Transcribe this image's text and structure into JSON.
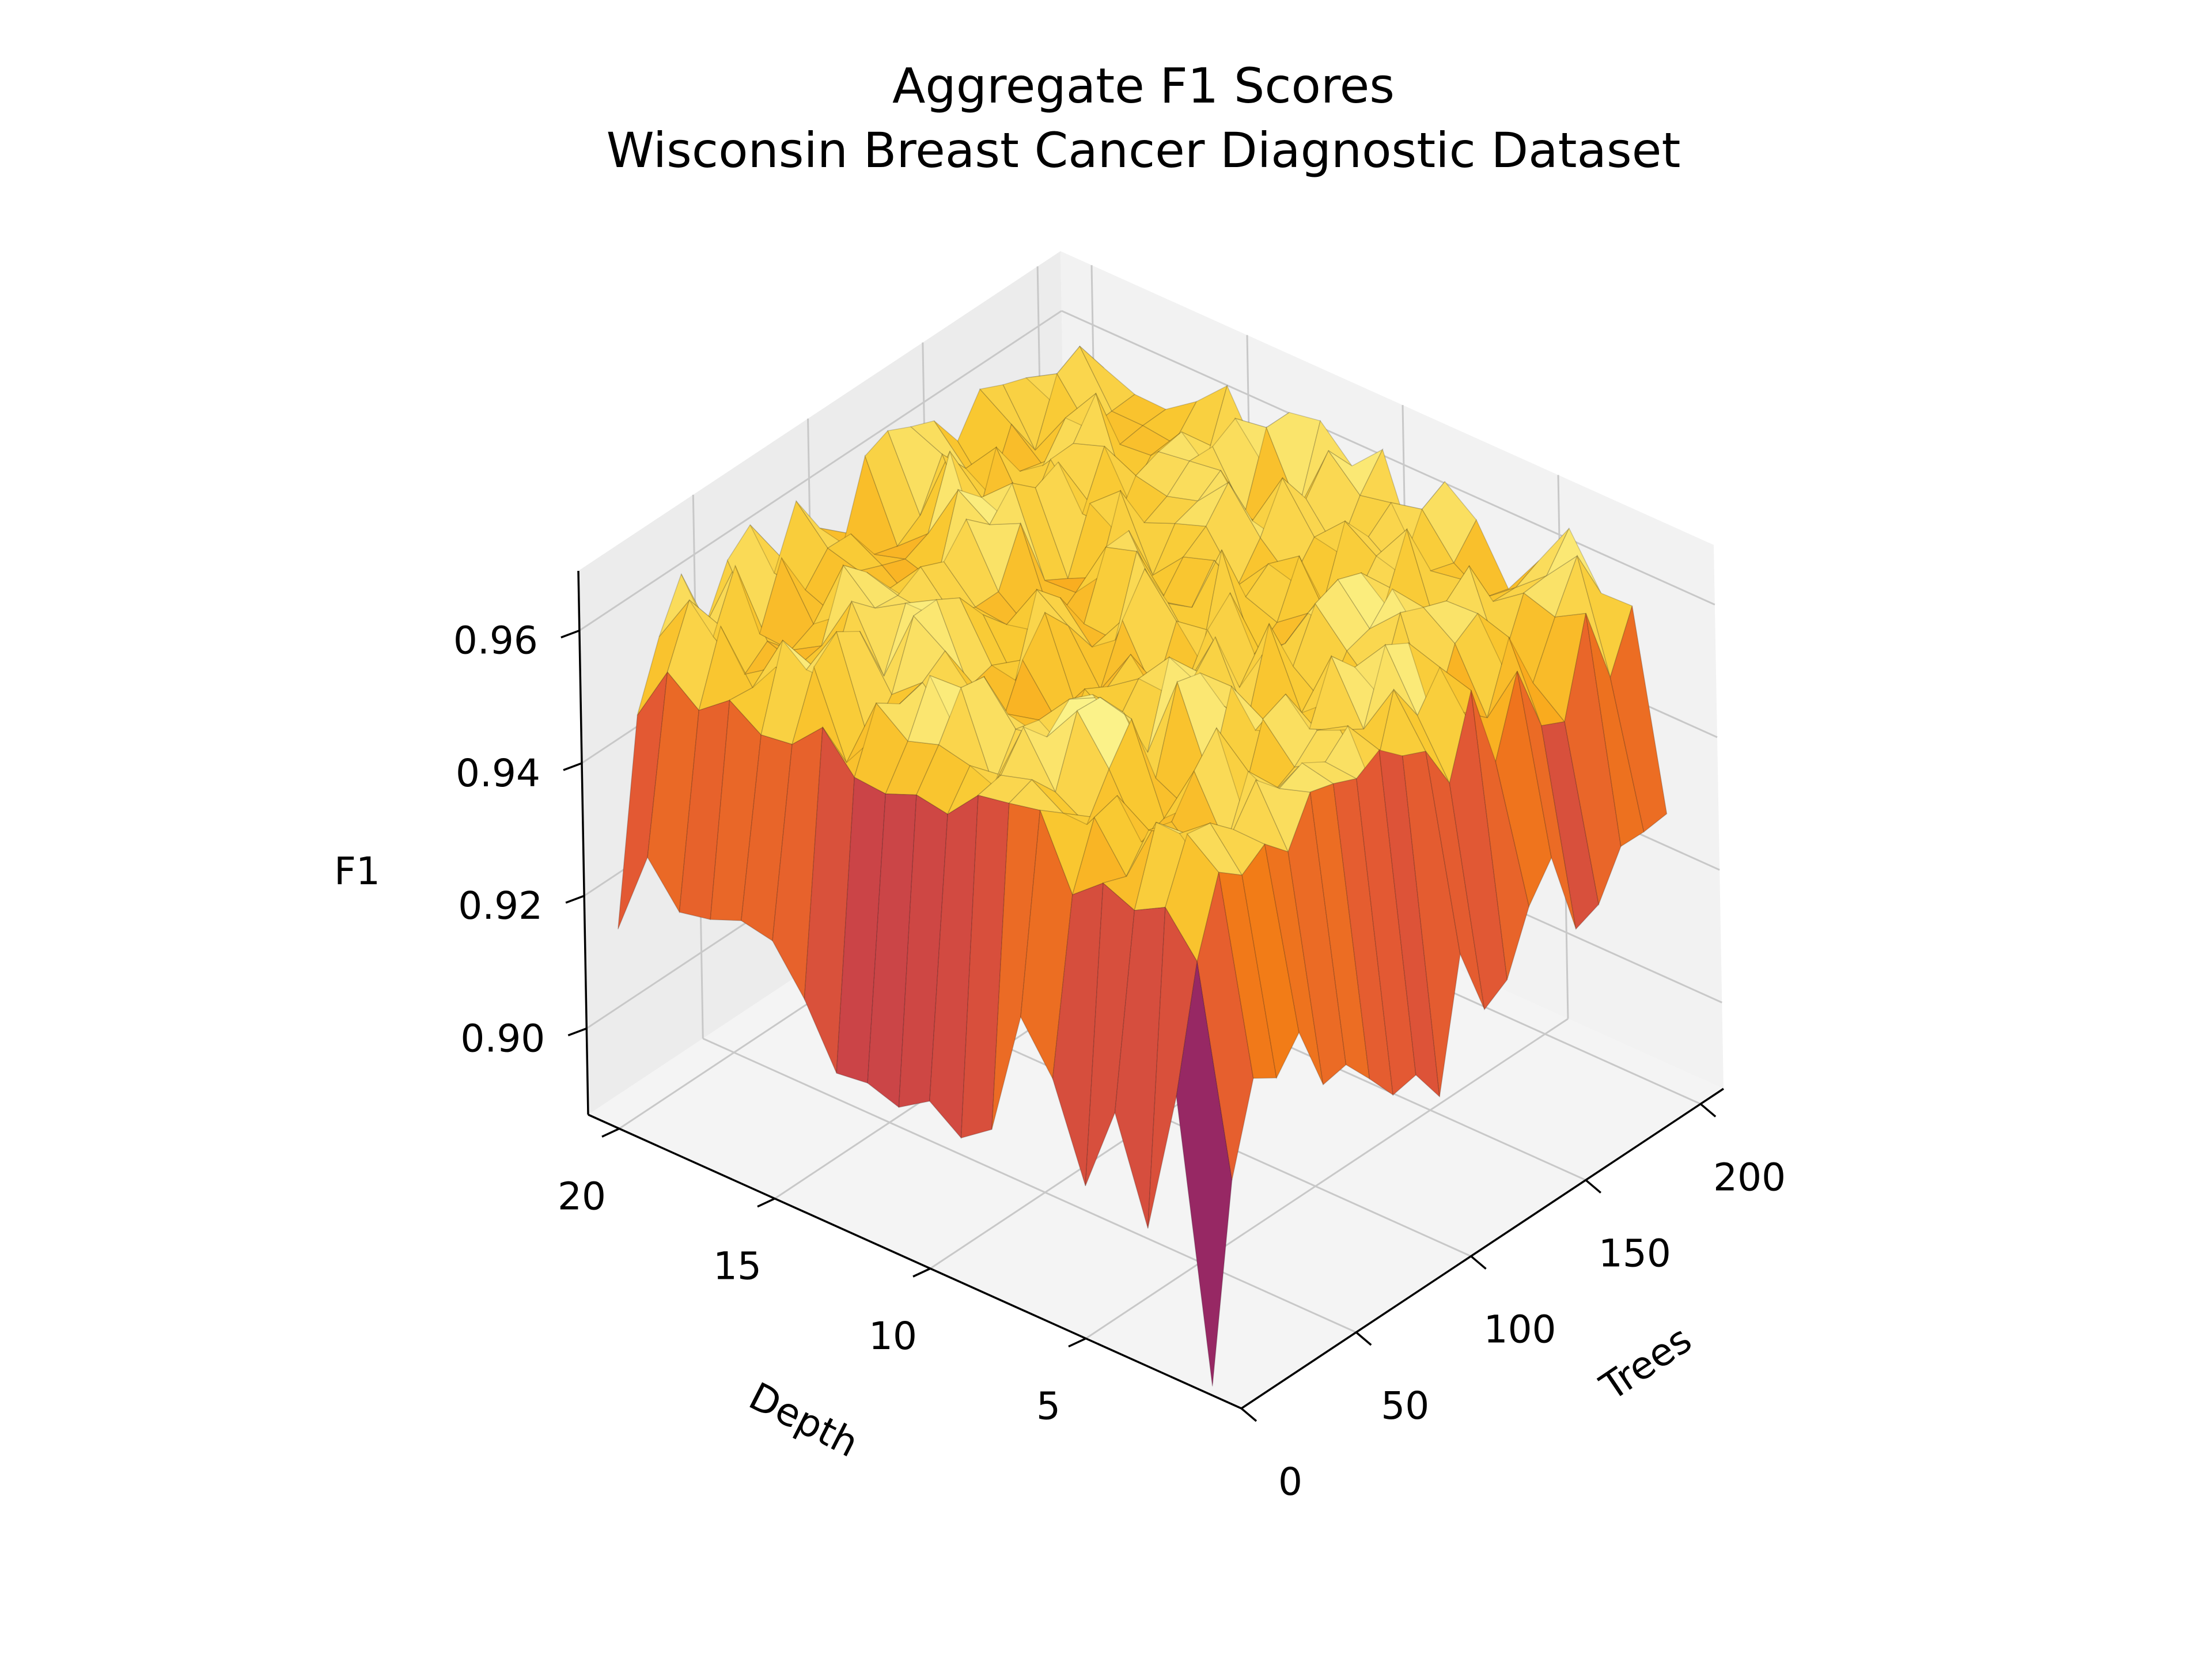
{
  "chart_data": {
    "type": "surface3d",
    "title": [
      "Aggregate F1 Scores",
      "Wisconsin Breast Cancer Diagnostic Dataset"
    ],
    "xlabel": "Trees",
    "ylabel": "Depth",
    "zlabel": "F1",
    "xlim": [
      0,
      210
    ],
    "ylim": [
      0,
      21
    ],
    "zlim": [
      0.887,
      0.969
    ],
    "xticks": [
      "0",
      "50",
      "100",
      "150",
      "200"
    ],
    "yticks": [
      "5",
      "10",
      "15",
      "20"
    ],
    "zticks": [
      "0.90",
      "0.92",
      "0.94",
      "0.96"
    ],
    "colormap": "inferno",
    "grid": true,
    "trees": [
      1,
      11,
      21,
      31,
      41,
      51,
      61,
      71,
      81,
      91,
      101,
      111,
      121,
      131,
      141,
      151,
      161,
      171,
      181,
      191,
      201
    ],
    "depth": [
      1,
      2,
      3,
      4,
      5,
      6,
      7,
      8,
      9,
      10,
      11,
      12,
      13,
      14,
      15,
      16,
      17,
      18,
      19,
      20
    ],
    "f1_summary": {
      "plateau_range": [
        0.95,
        0.966
      ],
      "depth_1_range": [
        0.908,
        0.935
      ],
      "trees_1_range": [
        0.905,
        0.935
      ],
      "min_value": 0.888,
      "min_at": {
        "trees": 1,
        "depth": 1
      }
    }
  }
}
